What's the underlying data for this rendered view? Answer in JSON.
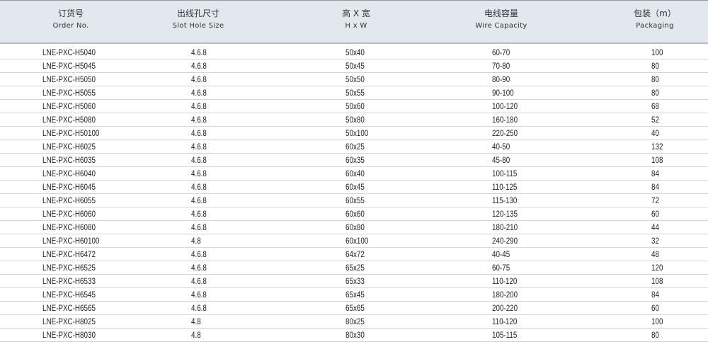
{
  "columns": [
    {
      "cn": "订货号",
      "en": "Order No."
    },
    {
      "cn": "出线孔尺寸",
      "en": "Slot Hole Size"
    },
    {
      "cn": "高 X 宽",
      "en": "H x W"
    },
    {
      "cn": "电线容量",
      "en": "Wire Capacity"
    },
    {
      "cn": "包装（m）",
      "en": "Packaging"
    }
  ],
  "rows": [
    [
      "LNE-PXC-H5040",
      "4.6.8",
      "50x40",
      "60-70",
      "100"
    ],
    [
      "LNE-PXC-H5045",
      "4.6.8",
      "50x45",
      "70-80",
      "80"
    ],
    [
      "LNE-PXC-H5050",
      "4.6.8",
      "50x50",
      "80-90",
      "80"
    ],
    [
      "LNE-PXC-H5055",
      "4.6.8",
      "50x55",
      "90-100",
      "80"
    ],
    [
      "LNE-PXC-H5060",
      "4.6.8",
      "50x60",
      "100-120",
      "68"
    ],
    [
      "LNE-PXC-H5080",
      "4.6.8",
      "50x80",
      "160-180",
      "52"
    ],
    [
      "LNE-PXC-H50100",
      "4.6.8",
      "50x100",
      "220-250",
      "40"
    ],
    [
      "LNE-PXC-H6025",
      "4.6.8",
      "60x25",
      "40-50",
      "132"
    ],
    [
      "LNE-PXC-H6035",
      "4.6.8",
      "60x35",
      "45-80",
      "108"
    ],
    [
      "LNE-PXC-H6040",
      "4.6.8",
      "60x40",
      "100-115",
      "84"
    ],
    [
      "LNE-PXC-H6045",
      "4.6.8",
      "60x45",
      "110-125",
      "84"
    ],
    [
      "LNE-PXC-H6055",
      "4.6.8",
      "60x55",
      "115-130",
      "72"
    ],
    [
      "LNE-PXC-H6060",
      "4.6.8",
      "60x60",
      "120-135",
      "60"
    ],
    [
      "LNE-PXC-H6080",
      "4.6.8",
      "60x80",
      "180-210",
      "44"
    ],
    [
      "LNE-PXC-H60100",
      "4.8",
      "60x100",
      "240-290",
      "32"
    ],
    [
      "LNE-PXC-H6472",
      "4.6.8",
      "64x72",
      "40-45",
      "48"
    ],
    [
      "LNE-PXC-H6525",
      "4.6.8",
      "65x25",
      "60-75",
      "120"
    ],
    [
      "LNE-PXC-H6533",
      "4.6.8",
      "65x33",
      "110-120",
      "108"
    ],
    [
      "LNE-PXC-H6545",
      "4.6.8",
      "65x45",
      "180-200",
      "84"
    ],
    [
      "LNE-PXC-H6565",
      "4.6.8",
      "65x65",
      "200-220",
      "60"
    ],
    [
      "LNE-PXC-H8025",
      "4.8",
      "80x25",
      "110-120",
      "100"
    ],
    [
      "LNE-PXC-H8030",
      "4.8",
      "80x30",
      "105-115",
      "80"
    ]
  ]
}
